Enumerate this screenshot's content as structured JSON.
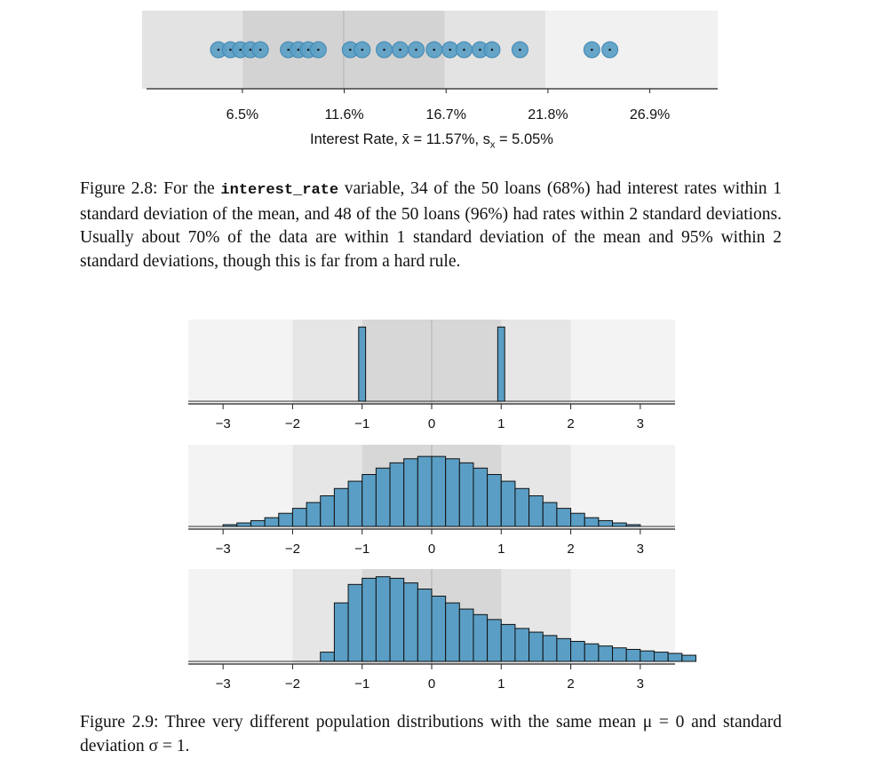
{
  "figure_2_8": {
    "dot_plot": {
      "ticks": [
        "6.5%",
        "11.6%",
        "16.7%",
        "21.8%",
        "26.9%"
      ],
      "tick_values": [
        6.5,
        11.6,
        16.7,
        21.8,
        26.9
      ],
      "axis_label": "Interest Rate, x̄ = 11.57%, s",
      "axis_label_sub": "x",
      "axis_label_end": " = 5.05%",
      "mean": 11.57,
      "sd": 5.05,
      "xlim": [
        1.7,
        30.3
      ],
      "points": [
        5.3,
        5.9,
        6.4,
        6.9,
        7.4,
        8.8,
        9.3,
        9.8,
        10.3,
        11.9,
        12.5,
        13.6,
        14.4,
        15.2,
        16.1,
        16.9,
        17.6,
        18.4,
        19.0,
        20.4,
        24.0,
        24.9
      ],
      "colors": {
        "point": "#5b9fc5",
        "point_stroke": "#3f87b2",
        "band1": "#d3d3d3",
        "band2": "#e3e3e3",
        "band3": "#f1f1f1",
        "center": "#bdbdbd"
      }
    },
    "caption": {
      "prefix": "Figure 2.8: For the ",
      "code": "interest_rate",
      "rest": " variable, 34 of the 50 loans (68%) had interest rates within 1 standard deviation of the mean, and 48 of the 50 loans (96%) had rates within 2 standard deviations. Usually about 70% of the data are within 1 standard deviation of the mean and 95% within 2 standard deviations, though this is far from a hard rule."
    }
  },
  "figure_2_9": {
    "tick_labels": [
      "−3",
      "−2",
      "−1",
      "0",
      "1",
      "2",
      "3"
    ],
    "tick_values": [
      -3,
      -2,
      -1,
      0,
      1,
      2,
      3
    ],
    "xlim": [
      -3.5,
      3.5
    ],
    "colors": {
      "bar": "#5a9ec5",
      "bar_stroke": "#111111",
      "band1": "#d7d7d7",
      "band2": "#e6e6e6",
      "band3": "#f3f3f3",
      "center": "#bdbdbd"
    },
    "chart_data": [
      {
        "type": "bar",
        "bins": [
          [
            -1.05,
            -0.95
          ],
          [
            0.95,
            1.05
          ]
        ],
        "values": [
          1,
          1
        ],
        "ylim": [
          0,
          1.1
        ]
      },
      {
        "type": "bar",
        "bin_width": 0.2,
        "x_start": -3.0,
        "values": [
          0.006,
          0.012,
          0.02,
          0.03,
          0.045,
          0.062,
          0.082,
          0.105,
          0.13,
          0.155,
          0.178,
          0.2,
          0.218,
          0.232,
          0.24,
          0.24,
          0.232,
          0.218,
          0.2,
          0.178,
          0.155,
          0.13,
          0.105,
          0.082,
          0.062,
          0.045,
          0.03,
          0.02,
          0.012,
          0.006
        ],
        "ylim": [
          0,
          0.28
        ]
      },
      {
        "type": "bar",
        "bin_width": 0.2,
        "x_start": -1.6,
        "values": [
          0.03,
          0.19,
          0.25,
          0.27,
          0.275,
          0.27,
          0.255,
          0.235,
          0.212,
          0.19,
          0.17,
          0.152,
          0.136,
          0.12,
          0.107,
          0.095,
          0.084,
          0.074,
          0.065,
          0.057,
          0.05,
          0.044,
          0.039,
          0.034,
          0.03,
          0.026,
          0.02
        ],
        "ylim": [
          0,
          0.3
        ]
      }
    ],
    "caption": "Figure 2.9: Three very different population distributions with the same mean μ = 0 and standard deviation σ = 1."
  }
}
